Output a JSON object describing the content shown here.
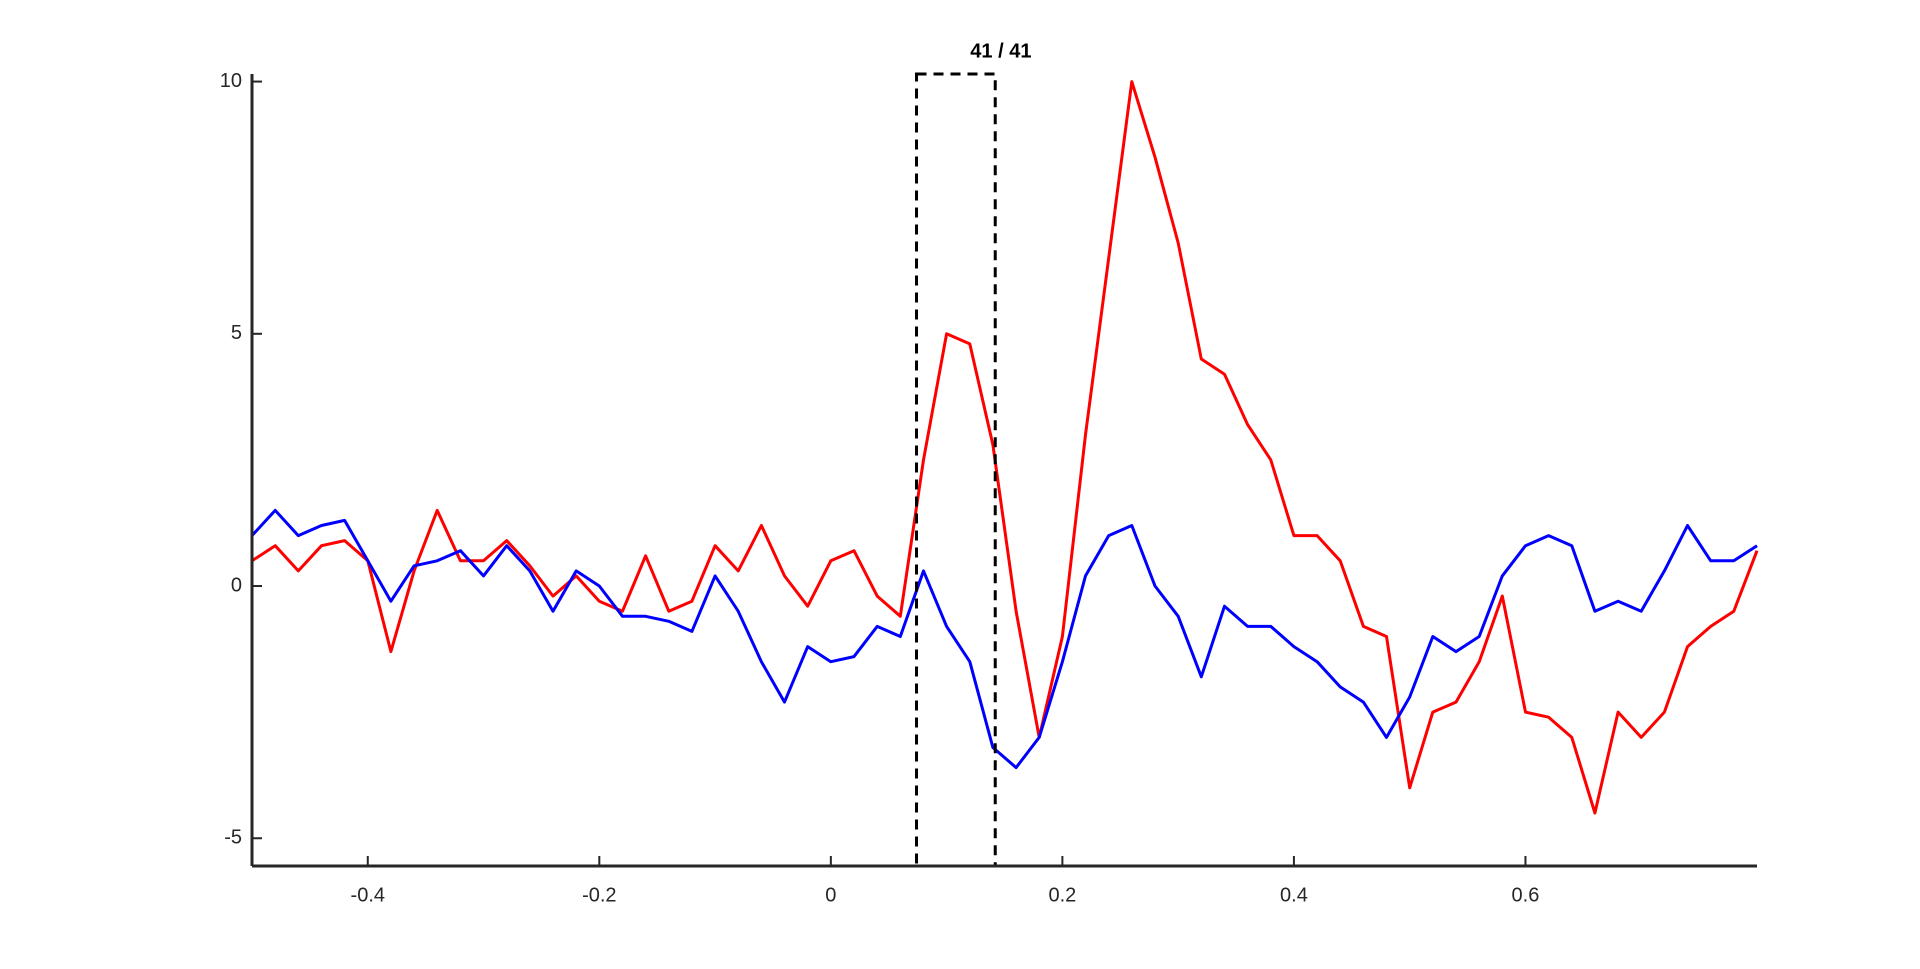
{
  "chart_data": {
    "type": "line",
    "x": [
      -0.5,
      -0.48,
      -0.46,
      -0.44,
      -0.42,
      -0.4,
      -0.38,
      -0.36,
      -0.34,
      -0.32,
      -0.3,
      -0.28,
      -0.26,
      -0.24,
      -0.22,
      -0.2,
      -0.18,
      -0.16,
      -0.14,
      -0.12,
      -0.1,
      -0.08,
      -0.06,
      -0.04,
      -0.02,
      0,
      0.02,
      0.04,
      0.06,
      0.08,
      0.1,
      0.12,
      0.14,
      0.16,
      0.18,
      0.2,
      0.22,
      0.24,
      0.26,
      0.28,
      0.3,
      0.32,
      0.34,
      0.36,
      0.38,
      0.4,
      0.42,
      0.44,
      0.46,
      0.48,
      0.5,
      0.52,
      0.54,
      0.56,
      0.58,
      0.6,
      0.62,
      0.64,
      0.66,
      0.68,
      0.7,
      0.72,
      0.74,
      0.76,
      0.78,
      0.8
    ],
    "series": [
      {
        "color": "#ff0000",
        "values": [
          0.5,
          0.8,
          0.3,
          0.8,
          0.9,
          0.5,
          -1.3,
          0.3,
          1.5,
          0.5,
          0.5,
          0.9,
          0.4,
          -0.2,
          0.2,
          -0.3,
          -0.5,
          0.6,
          -0.5,
          -0.3,
          0.8,
          0.3,
          1.2,
          0.2,
          -0.4,
          0.5,
          0.7,
          -0.2,
          -0.6,
          2.5,
          5.0,
          4.8,
          2.8,
          -0.5,
          -3.0,
          -1.0,
          3.0,
          6.5,
          10.0,
          8.5,
          6.8,
          4.5,
          4.2,
          3.2,
          2.5,
          1.0,
          1.0,
          0.5,
          -0.8,
          -1.0,
          -4.0,
          -2.5,
          -2.3,
          -1.5,
          -0.2,
          -2.5,
          -2.6,
          -3.0,
          -4.5,
          -2.5,
          -3.0,
          -2.5,
          -1.2,
          -0.8,
          -0.5,
          0.7
        ]
      },
      {
        "color": "#0000ff",
        "values": [
          1.0,
          1.5,
          1.0,
          1.2,
          1.3,
          0.5,
          -0.3,
          0.4,
          0.5,
          0.7,
          0.2,
          0.8,
          0.3,
          -0.5,
          0.3,
          0.0,
          -0.6,
          -0.6,
          -0.7,
          -0.9,
          0.2,
          -0.5,
          -1.5,
          -2.3,
          -1.2,
          -1.5,
          -1.4,
          -0.8,
          -1.0,
          0.3,
          -0.8,
          -1.5,
          -3.2,
          -3.6,
          -3.0,
          -1.5,
          0.2,
          1.0,
          1.2,
          0.0,
          -0.6,
          -1.8,
          -0.4,
          -0.8,
          -0.8,
          -1.2,
          -1.5,
          -2.0,
          -2.3,
          -3.0,
          -2.2,
          -1.0,
          -1.3,
          -1.0,
          0.2,
          0.8,
          1.0,
          0.8,
          -0.5,
          -0.3,
          -0.5,
          0.3,
          1.2,
          0.5,
          0.5,
          0.8
        ]
      }
    ],
    "xlim": [
      -0.5,
      0.8
    ],
    "xticks": [
      -0.4,
      -0.2,
      0,
      0.2,
      0.4,
      0.6
    ],
    "ylim": [
      -5.55,
      10.15
    ],
    "yticks": [
      -5,
      0,
      5,
      10
    ],
    "highlight": {
      "xlim": [
        0.074,
        0.142
      ],
      "label": "41 / 41"
    }
  }
}
